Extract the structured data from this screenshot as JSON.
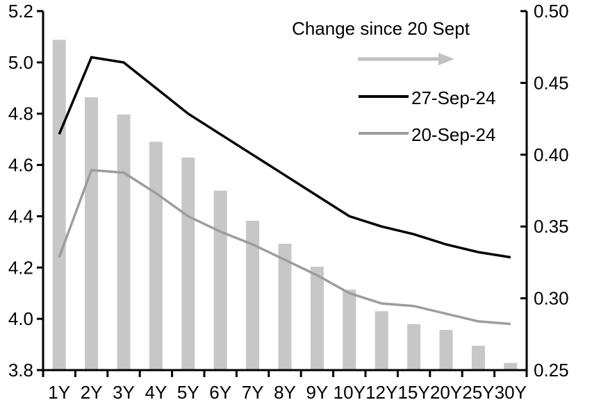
{
  "chart_data": {
    "type": "combo",
    "title": "",
    "categories": [
      "1Y",
      "2Y",
      "3Y",
      "4Y",
      "5Y",
      "6Y",
      "7Y",
      "8Y",
      "9Y",
      "10Y",
      "12Y",
      "15Y",
      "20Y",
      "25Y",
      "30Y"
    ],
    "series": [
      {
        "name": "Change since 20 Sept",
        "type": "bar",
        "axis": "right",
        "color": "#C7C7C7",
        "values": [
          0.48,
          0.44,
          0.428,
          0.409,
          0.398,
          0.375,
          0.354,
          0.338,
          0.322,
          0.306,
          0.291,
          0.282,
          0.278,
          0.267,
          0.255
        ]
      },
      {
        "name": "27-Sep-24",
        "type": "line",
        "axis": "left",
        "color": "#000000",
        "values": [
          4.72,
          5.02,
          5.0,
          4.9,
          4.8,
          4.72,
          4.64,
          4.56,
          4.48,
          4.4,
          4.36,
          4.33,
          4.29,
          4.26,
          4.24
        ]
      },
      {
        "name": "20-Sep-24",
        "type": "line",
        "axis": "left",
        "color": "#9D9D9D",
        "values": [
          4.24,
          4.58,
          4.57,
          4.49,
          4.4,
          4.34,
          4.29,
          4.23,
          4.17,
          4.1,
          4.06,
          4.05,
          4.02,
          3.99,
          3.98
        ]
      }
    ],
    "left_axis": {
      "min": 3.8,
      "max": 5.2,
      "tick_values": [
        3.8,
        4.0,
        4.2,
        4.4,
        4.6,
        4.8,
        5.0,
        5.2
      ],
      "tick_labels": [
        "3.8",
        "4.0",
        "4.2",
        "4.4",
        "4.6",
        "4.8",
        "5.0",
        "5.2"
      ]
    },
    "right_axis": {
      "min": 0.25,
      "max": 0.5,
      "tick_values": [
        0.25,
        0.3,
        0.35,
        0.4,
        0.45,
        0.5
      ],
      "tick_labels": [
        "0.25",
        "0.30",
        "0.35",
        "0.40",
        "0.45",
        "0.50"
      ]
    },
    "legend": {
      "position": "top-center",
      "arrow_icon": "right-arrow",
      "arrow_color": "#C2C2C2"
    },
    "grid": false,
    "axis_color": "#000000"
  }
}
